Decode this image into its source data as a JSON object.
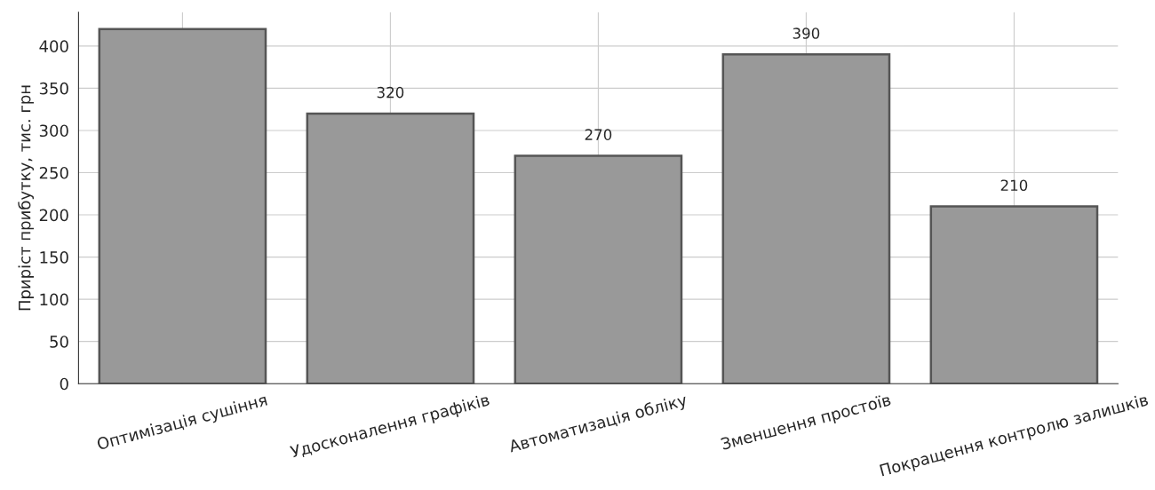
{
  "chart_data": {
    "type": "bar",
    "ylabel": "Приріст прибутку, тис. грн",
    "categories": [
      "Оптимізація сушіння",
      "Удосконалення графіків",
      "Автоматизація обліку",
      "Зменшення простоїв",
      "Покращення контролю залишків"
    ],
    "values": [
      420,
      320,
      270,
      390,
      210
    ],
    "value_labels": [
      null,
      "320",
      "270",
      "390",
      "210"
    ],
    "color": "#999999",
    "ylim": [
      0,
      440
    ],
    "yticks": [
      0,
      50,
      100,
      150,
      200,
      250,
      300,
      350,
      400
    ],
    "grid": true
  }
}
